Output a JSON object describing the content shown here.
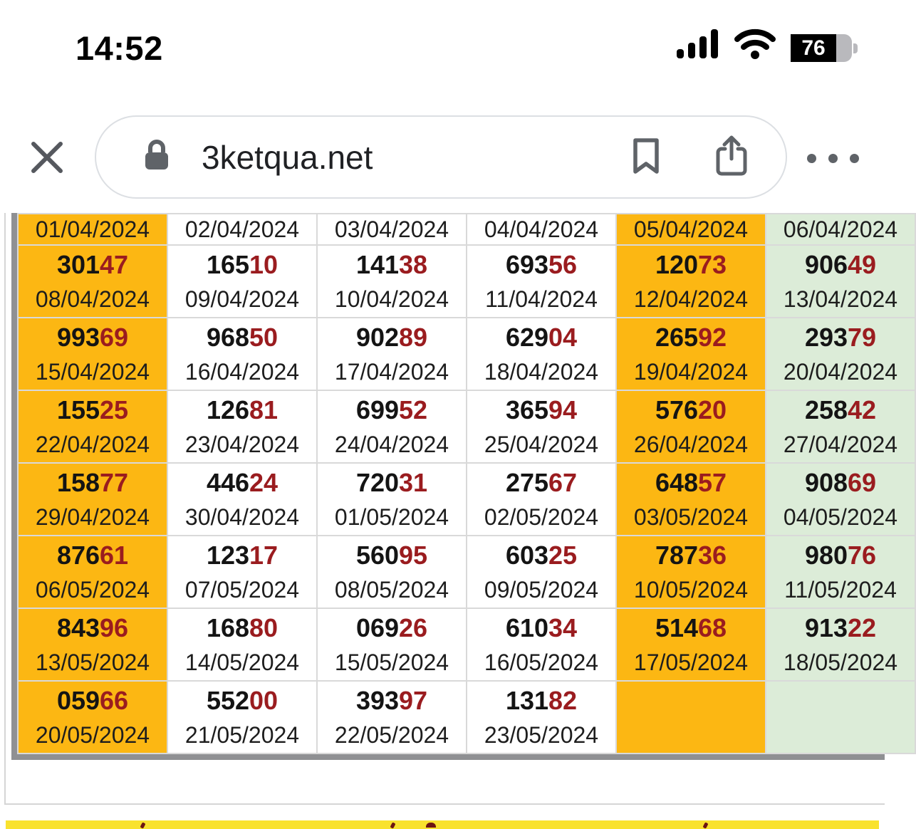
{
  "status_bar": {
    "time": "14:52",
    "battery_percent": "76"
  },
  "browser": {
    "url": "3ketqua.net"
  },
  "colors": {
    "orange": "#fcb713",
    "green": "#dcecd8",
    "red": "#9a1c1f",
    "yellow": "#f9e22e",
    "chrome_icon_gray": "#5f6368"
  },
  "table": {
    "column_styles": [
      "orange",
      "white",
      "white",
      "white",
      "orange",
      "green"
    ],
    "header_dates": [
      "01/04/2024",
      "02/04/2024",
      "03/04/2024",
      "04/04/2024",
      "05/04/2024",
      "06/04/2024"
    ],
    "rows": [
      [
        {
          "num": "30147",
          "date": "08/04/2024"
        },
        {
          "num": "16510",
          "date": "09/04/2024"
        },
        {
          "num": "14138",
          "date": "10/04/2024"
        },
        {
          "num": "69356",
          "date": "11/04/2024"
        },
        {
          "num": "12073",
          "date": "12/04/2024"
        },
        {
          "num": "90649",
          "date": "13/04/2024"
        }
      ],
      [
        {
          "num": "99369",
          "date": "15/04/2024"
        },
        {
          "num": "96850",
          "date": "16/04/2024"
        },
        {
          "num": "90289",
          "date": "17/04/2024"
        },
        {
          "num": "62904",
          "date": "18/04/2024"
        },
        {
          "num": "26592",
          "date": "19/04/2024"
        },
        {
          "num": "29379",
          "date": "20/04/2024"
        }
      ],
      [
        {
          "num": "15525",
          "date": "22/04/2024"
        },
        {
          "num": "12681",
          "date": "23/04/2024"
        },
        {
          "num": "69952",
          "date": "24/04/2024"
        },
        {
          "num": "36594",
          "date": "25/04/2024"
        },
        {
          "num": "57620",
          "date": "26/04/2024"
        },
        {
          "num": "25842",
          "date": "27/04/2024"
        }
      ],
      [
        {
          "num": "15877",
          "date": "29/04/2024"
        },
        {
          "num": "44624",
          "date": "30/04/2024"
        },
        {
          "num": "72031",
          "date": "01/05/2024"
        },
        {
          "num": "27567",
          "date": "02/05/2024"
        },
        {
          "num": "64857",
          "date": "03/05/2024"
        },
        {
          "num": "90869",
          "date": "04/05/2024"
        }
      ],
      [
        {
          "num": "87661",
          "date": "06/05/2024"
        },
        {
          "num": "12317",
          "date": "07/05/2024"
        },
        {
          "num": "56095",
          "date": "08/05/2024"
        },
        {
          "num": "60325",
          "date": "09/05/2024"
        },
        {
          "num": "78736",
          "date": "10/05/2024"
        },
        {
          "num": "98076",
          "date": "11/05/2024"
        }
      ],
      [
        {
          "num": "84396",
          "date": "13/05/2024"
        },
        {
          "num": "16880",
          "date": "14/05/2024"
        },
        {
          "num": "06926",
          "date": "15/05/2024"
        },
        {
          "num": "61034",
          "date": "16/05/2024"
        },
        {
          "num": "51468",
          "date": "17/05/2024"
        },
        {
          "num": "91322",
          "date": "18/05/2024"
        }
      ],
      [
        {
          "num": "05966",
          "date": "20/05/2024"
        },
        {
          "num": "55200",
          "date": "21/05/2024"
        },
        {
          "num": "39397",
          "date": "22/05/2024"
        },
        {
          "num": "13182",
          "date": "23/05/2024"
        },
        null,
        null
      ]
    ]
  }
}
